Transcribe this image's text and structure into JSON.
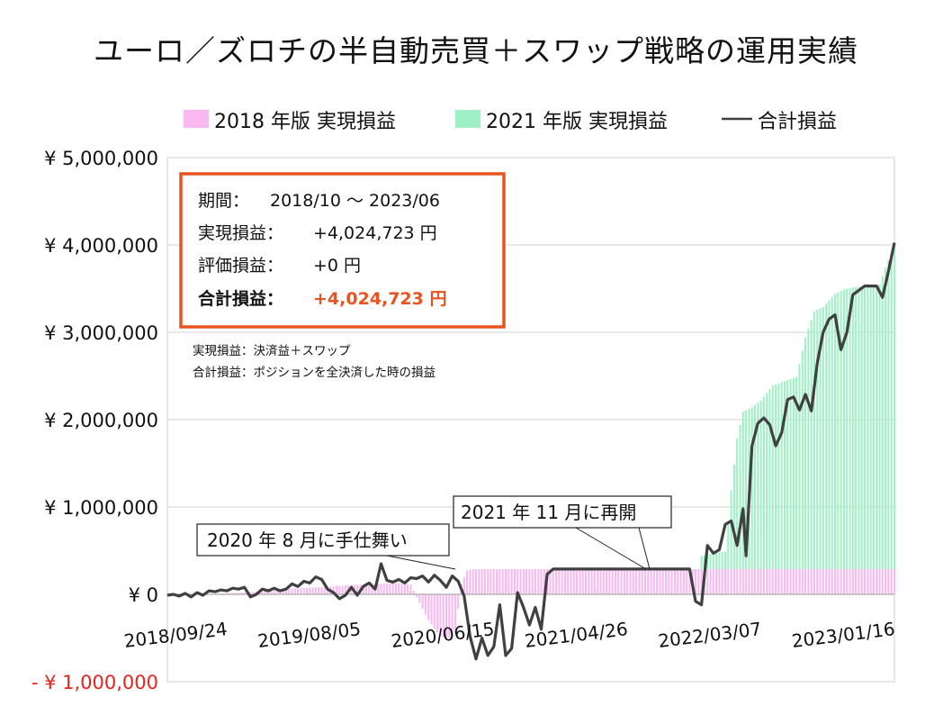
{
  "chart_data": {
    "type": "area+line",
    "title": "ユーロ／ズロチの半自動売買＋スワップ戦略の運用実績",
    "currency_symbol": "¥",
    "ylim": [
      -1000000,
      5000000
    ],
    "y_ticks": [
      {
        "value": 5000000,
        "label": "¥ 5,000,000"
      },
      {
        "value": 4000000,
        "label": "¥ 4,000,000"
      },
      {
        "value": 3000000,
        "label": "¥ 3,000,000"
      },
      {
        "value": 2000000,
        "label": "¥ 2,000,000"
      },
      {
        "value": 1000000,
        "label": "¥ 1,000,000"
      },
      {
        "value": 0,
        "label": "¥ 0"
      },
      {
        "value": -1000000,
        "label": "- ¥ 1,000,000"
      }
    ],
    "x_range_weeks": [
      0,
      245
    ],
    "x_ticks": [
      {
        "week": 0,
        "label": "2018/09/24"
      },
      {
        "week": 45,
        "label": "2019/08/05"
      },
      {
        "week": 90,
        "label": "2020/06/15"
      },
      {
        "week": 135,
        "label": "2021/04/26"
      },
      {
        "week": 180,
        "label": "2022/03/07"
      },
      {
        "week": 225,
        "label": "2023/01/16"
      }
    ],
    "legend": [
      {
        "name": "2018 年版 実現損益",
        "color": "#f9b8f0",
        "kind": "area"
      },
      {
        "name": "2021 年版 実現損益",
        "color": "#9ff0c4",
        "kind": "area"
      },
      {
        "name": "合計損益",
        "color": "#404040",
        "kind": "line"
      }
    ],
    "series": [
      {
        "name": "2018 年版 実現損益",
        "color": "#f9b8f0",
        "points": [
          [
            0,
            -20000
          ],
          [
            10,
            0
          ],
          [
            20,
            10000
          ],
          [
            30,
            30000
          ],
          [
            40,
            60000
          ],
          [
            55,
            90000
          ],
          [
            65,
            110000
          ],
          [
            72,
            120000
          ],
          [
            78,
            130000
          ],
          [
            82,
            110000
          ],
          [
            85,
            -100000
          ],
          [
            88,
            -300000
          ],
          [
            92,
            -480000
          ],
          [
            95,
            -500000
          ],
          [
            97,
            -450000
          ],
          [
            99,
            120000
          ],
          [
            101,
            270000
          ],
          [
            103,
            290000
          ],
          [
            130,
            290000
          ],
          [
            160,
            290000
          ],
          [
            190,
            290000
          ],
          [
            220,
            290000
          ],
          [
            245,
            290000
          ]
        ]
      },
      {
        "name": "2021 年版 実現損益",
        "color": "#9ff0c4",
        "points": [
          [
            0,
            0
          ],
          [
            176,
            0
          ],
          [
            179,
            0
          ],
          [
            180,
            150000
          ],
          [
            184,
            180000
          ],
          [
            188,
            200000
          ],
          [
            190,
            900000
          ],
          [
            192,
            1500000
          ],
          [
            194,
            1800000
          ],
          [
            197,
            1850000
          ],
          [
            200,
            1930000
          ],
          [
            204,
            2100000
          ],
          [
            208,
            2150000
          ],
          [
            212,
            2200000
          ],
          [
            215,
            2650000
          ],
          [
            218,
            2950000
          ],
          [
            221,
            3000000
          ],
          [
            225,
            3150000
          ],
          [
            228,
            3200000
          ],
          [
            232,
            3230000
          ],
          [
            236,
            3240000
          ],
          [
            240,
            3260000
          ],
          [
            242,
            3450000
          ],
          [
            245,
            3700000
          ]
        ]
      },
      {
        "name": "合計損益",
        "color": "#404040",
        "points": [
          [
            0,
            -10000
          ],
          [
            2,
            0
          ],
          [
            4,
            -20000
          ],
          [
            6,
            10000
          ],
          [
            8,
            -30000
          ],
          [
            10,
            20000
          ],
          [
            12,
            -10000
          ],
          [
            14,
            40000
          ],
          [
            16,
            30000
          ],
          [
            18,
            50000
          ],
          [
            20,
            40000
          ],
          [
            22,
            70000
          ],
          [
            24,
            60000
          ],
          [
            26,
            80000
          ],
          [
            28,
            -30000
          ],
          [
            30,
            0
          ],
          [
            32,
            60000
          ],
          [
            34,
            40000
          ],
          [
            36,
            70000
          ],
          [
            38,
            40000
          ],
          [
            40,
            60000
          ],
          [
            42,
            120000
          ],
          [
            44,
            90000
          ],
          [
            46,
            150000
          ],
          [
            48,
            130000
          ],
          [
            50,
            200000
          ],
          [
            52,
            170000
          ],
          [
            54,
            60000
          ],
          [
            56,
            20000
          ],
          [
            58,
            -50000
          ],
          [
            60,
            -10000
          ],
          [
            62,
            80000
          ],
          [
            64,
            -10000
          ],
          [
            66,
            90000
          ],
          [
            68,
            130000
          ],
          [
            70,
            60000
          ],
          [
            72,
            350000
          ],
          [
            74,
            160000
          ],
          [
            76,
            140000
          ],
          [
            78,
            170000
          ],
          [
            80,
            130000
          ],
          [
            82,
            190000
          ],
          [
            84,
            180000
          ],
          [
            86,
            210000
          ],
          [
            88,
            140000
          ],
          [
            90,
            220000
          ],
          [
            92,
            160000
          ],
          [
            94,
            80000
          ],
          [
            96,
            210000
          ],
          [
            98,
            150000
          ],
          [
            100,
            -20000
          ],
          [
            102,
            -480000
          ],
          [
            104,
            -740000
          ],
          [
            106,
            -500000
          ],
          [
            108,
            -700000
          ],
          [
            110,
            -600000
          ],
          [
            112,
            -120000
          ],
          [
            114,
            -700000
          ],
          [
            116,
            -620000
          ],
          [
            118,
            20000
          ],
          [
            120,
            -150000
          ],
          [
            122,
            -350000
          ],
          [
            124,
            -150000
          ],
          [
            126,
            -400000
          ],
          [
            128,
            230000
          ],
          [
            130,
            290000
          ],
          [
            150,
            290000
          ],
          [
            170,
            290000
          ],
          [
            176,
            290000
          ],
          [
            178,
            -80000
          ],
          [
            180,
            -120000
          ],
          [
            182,
            560000
          ],
          [
            184,
            470000
          ],
          [
            186,
            510000
          ],
          [
            188,
            800000
          ],
          [
            190,
            840000
          ],
          [
            192,
            560000
          ],
          [
            194,
            980000
          ],
          [
            195,
            440000
          ],
          [
            197,
            1700000
          ],
          [
            199,
            1960000
          ],
          [
            201,
            2020000
          ],
          [
            203,
            1940000
          ],
          [
            205,
            1700000
          ],
          [
            207,
            1850000
          ],
          [
            209,
            2230000
          ],
          [
            211,
            2260000
          ],
          [
            213,
            2110000
          ],
          [
            215,
            2290000
          ],
          [
            217,
            2100000
          ],
          [
            219,
            2650000
          ],
          [
            221,
            3000000
          ],
          [
            223,
            3150000
          ],
          [
            225,
            3200000
          ],
          [
            227,
            2800000
          ],
          [
            229,
            3000000
          ],
          [
            231,
            3430000
          ],
          [
            235,
            3530000
          ],
          [
            239,
            3530000
          ],
          [
            241,
            3400000
          ],
          [
            243,
            3700000
          ],
          [
            245,
            4024723
          ]
        ]
      }
    ],
    "info_box": {
      "period_label": "期間：",
      "period_value": "2018/10 ～ 2023/06",
      "realized_label": "実現損益：",
      "realized_value": "+4,024,723 円",
      "unrealized_label": "評価損益：",
      "unrealized_value": "+0 円",
      "total_label": "合計損益：",
      "total_value": "+4,024,723 円"
    },
    "notes": [
      "実現損益：決済益＋スワップ",
      "合計損益：ポジションを全決済した時の損益"
    ],
    "callouts": [
      {
        "text": "2020 年 8 月に手仕舞い",
        "week": 103,
        "value": 290000
      },
      {
        "text": "2021 年 11 月に再開",
        "week": 177,
        "value": 290000
      }
    ],
    "colors": {
      "info_border": "#e8531f",
      "total_value": "#e8531f",
      "negative_tick": "#e8231c",
      "grid": "#d0d0d0"
    }
  }
}
